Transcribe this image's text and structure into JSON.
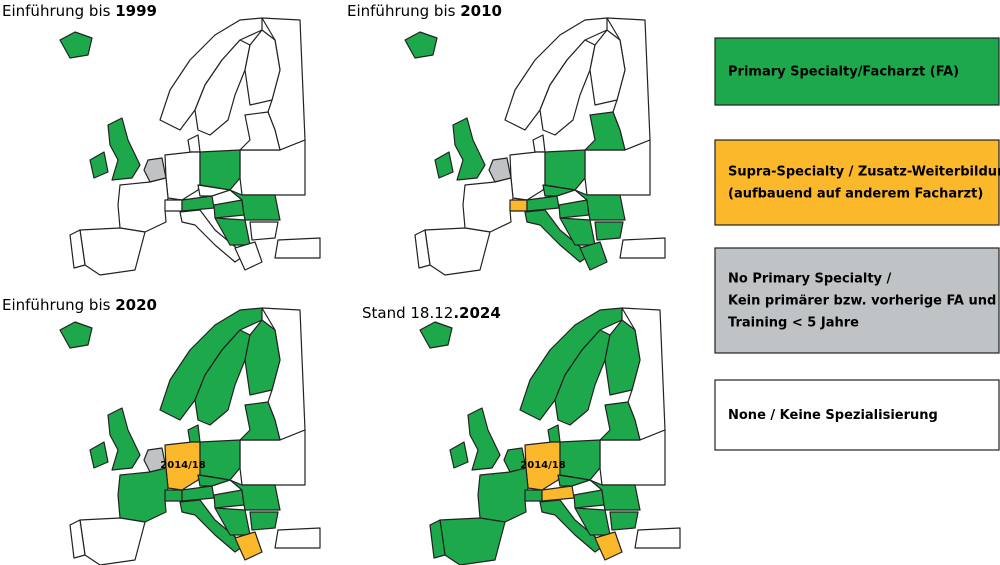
{
  "panels": [
    {
      "title_prefix": "Einführung bis ",
      "title_bold": "1999"
    },
    {
      "title_prefix": "Einführung bis ",
      "title_bold": "2010"
    },
    {
      "title_prefix": "Einführung bis ",
      "title_bold": "2020",
      "map_label": "2014/18"
    },
    {
      "title_prefix": "Stand 18.12",
      "title_bold": ".2024",
      "map_label": "2014/18"
    }
  ],
  "legend": {
    "items": [
      {
        "lines": [
          "Primary Specialty/Facharzt (FA)"
        ],
        "color": "#1ea84c"
      },
      {
        "lines": [
          "Supra-Specialty / Zusatz-Weiterbildung",
          "(aufbauend auf anderem Facharzt)"
        ],
        "color": "#fbb82b"
      },
      {
        "lines": [
          "No Primary Specialty /",
          "Kein primärer bzw. vorherige FA und",
          "Training < 5 Jahre"
        ],
        "color": "#bfc3c5"
      },
      {
        "lines": [
          "None / Keine Spezialisierung"
        ],
        "color": "#ffffff"
      }
    ]
  }
}
